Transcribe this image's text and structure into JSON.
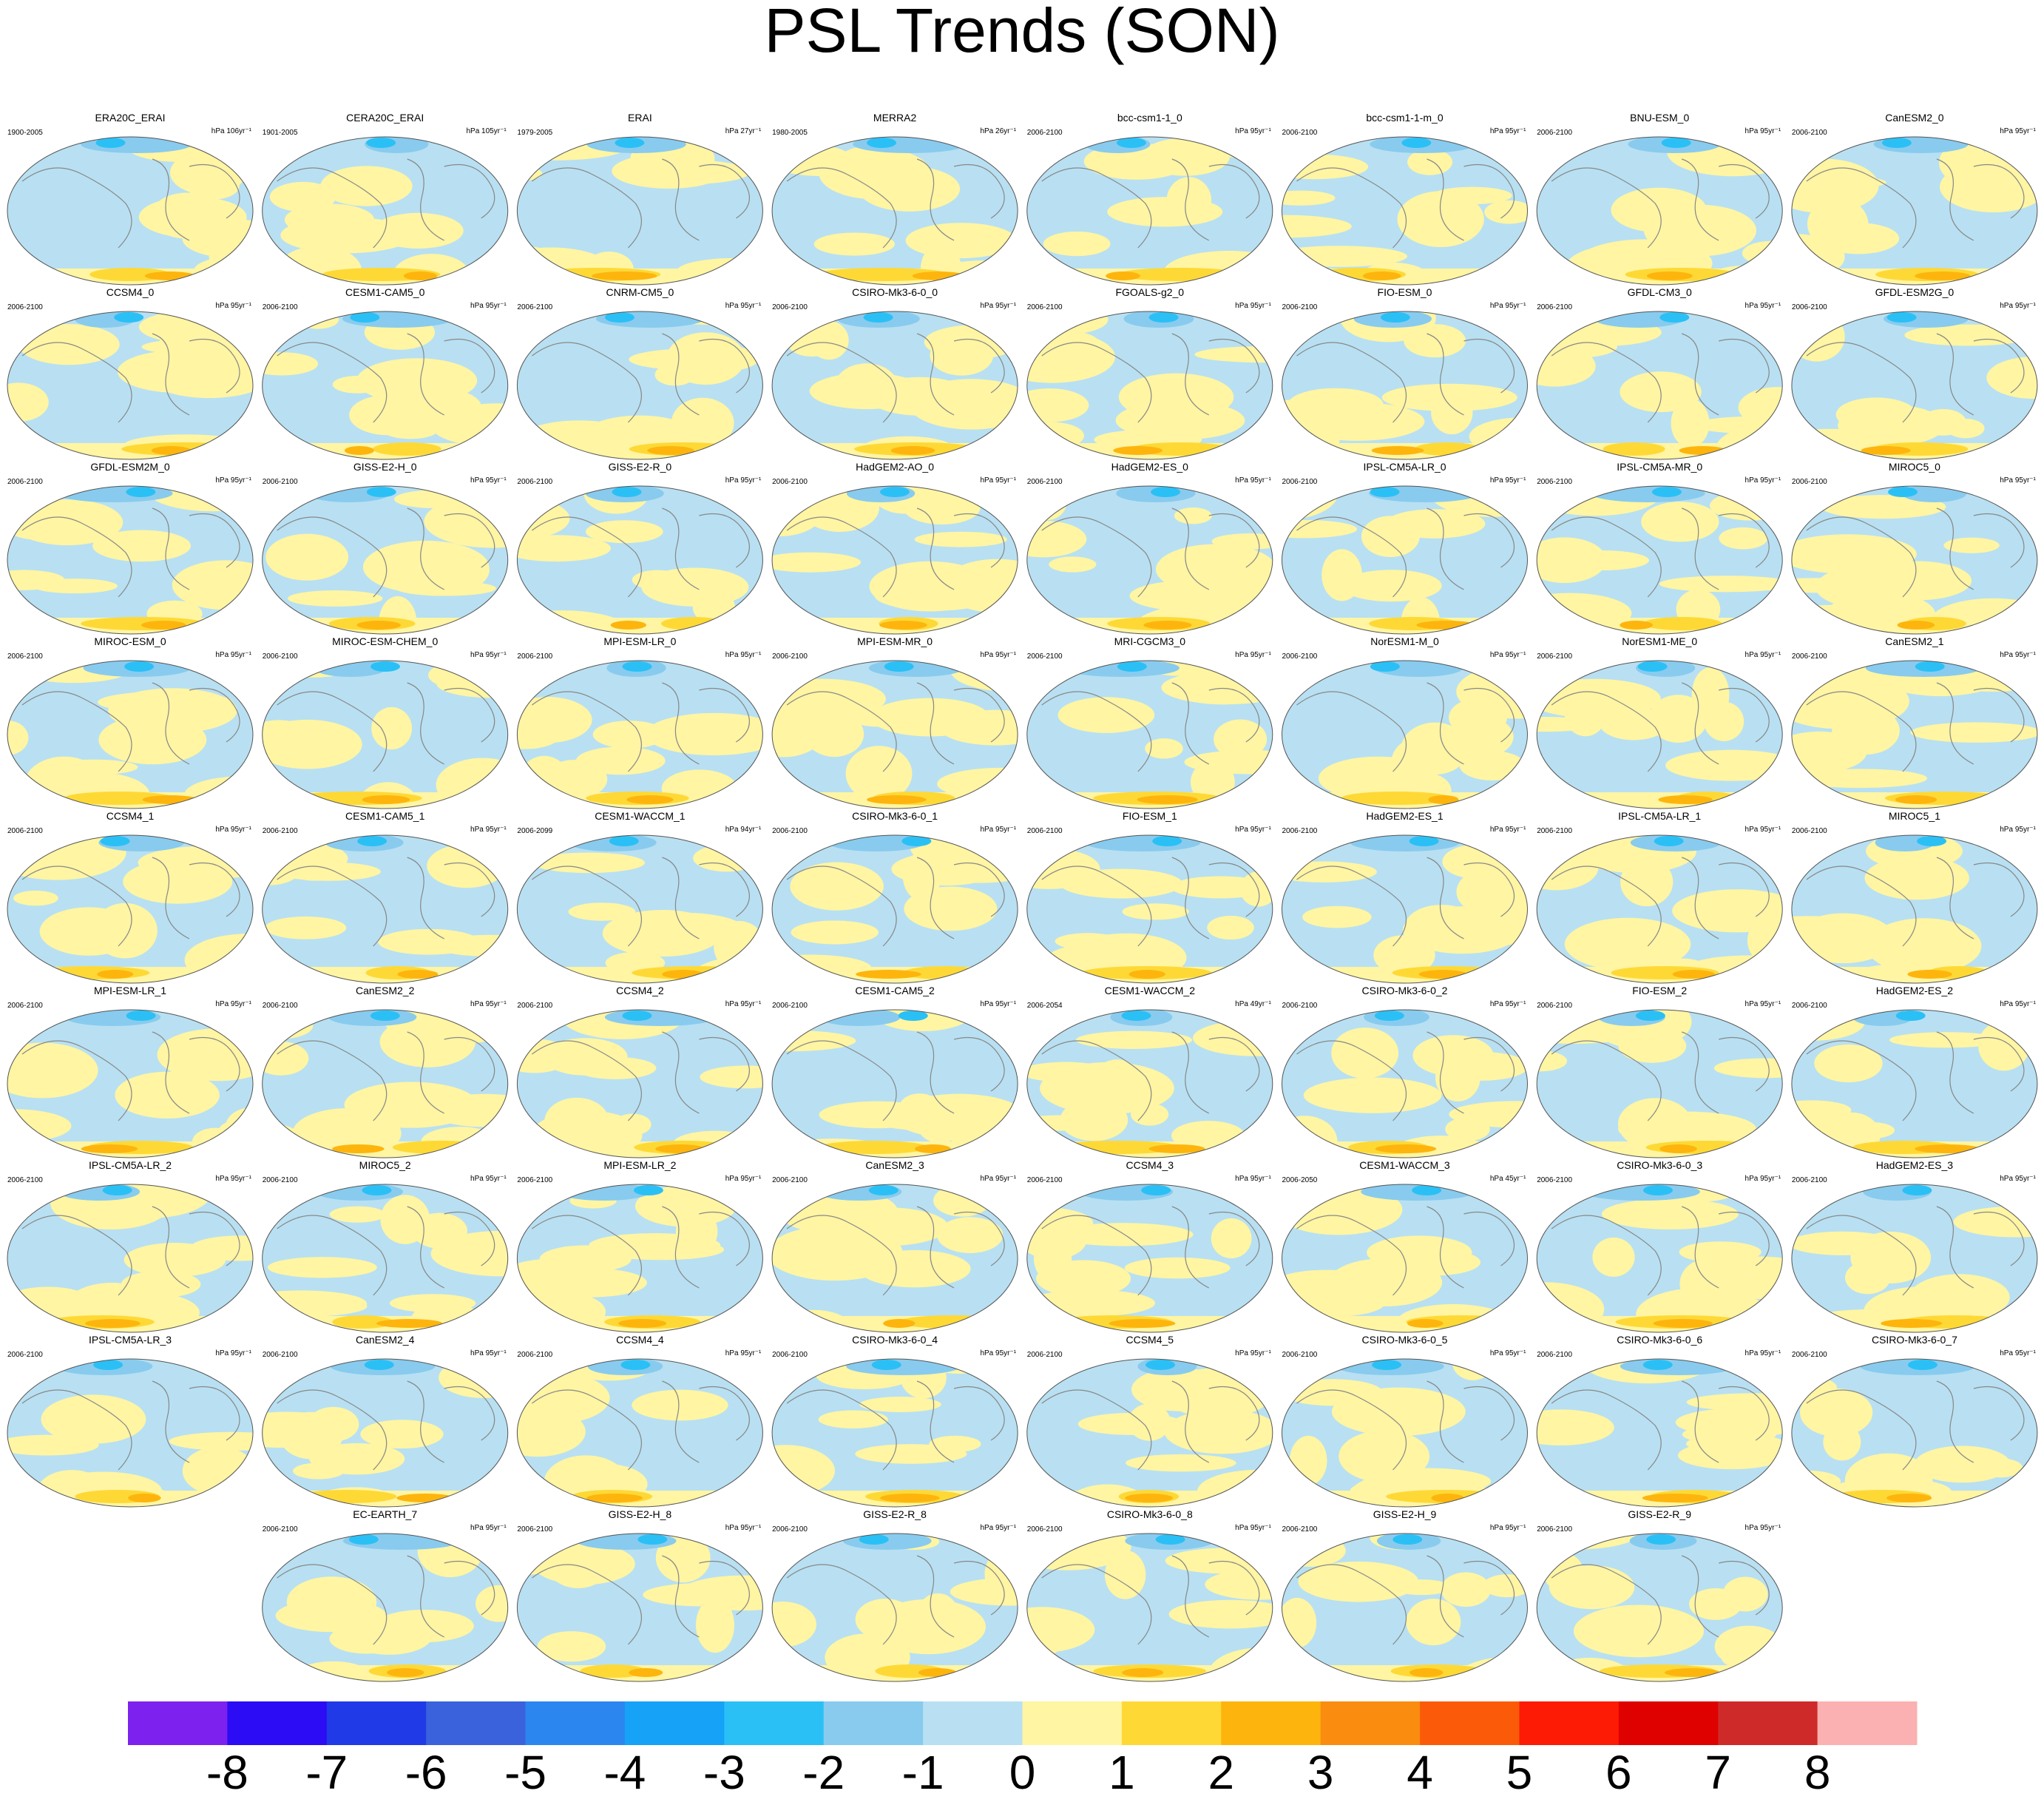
{
  "title": "PSL Trends (SON)",
  "panels": [
    {
      "name": "ERA20C_ERAI",
      "years": "1900-2005",
      "units": "hPa 106yr⁻¹"
    },
    {
      "name": "CERA20C_ERAI",
      "years": "1901-2005",
      "units": "hPa 105yr⁻¹"
    },
    {
      "name": "ERAI",
      "years": "1979-2005",
      "units": "hPa 27yr⁻¹"
    },
    {
      "name": "MERRA2",
      "years": "1980-2005",
      "units": "hPa 26yr⁻¹"
    },
    {
      "name": "bcc-csm1-1_0",
      "years": "2006-2100",
      "units": "hPa 95yr⁻¹"
    },
    {
      "name": "bcc-csm1-1-m_0",
      "years": "2006-2100",
      "units": "hPa 95yr⁻¹"
    },
    {
      "name": "BNU-ESM_0",
      "years": "2006-2100",
      "units": "hPa 95yr⁻¹"
    },
    {
      "name": "CanESM2_0",
      "years": "2006-2100",
      "units": "hPa 95yr⁻¹"
    },
    {
      "name": "CCSM4_0",
      "years": "2006-2100",
      "units": "hPa 95yr⁻¹"
    },
    {
      "name": "CESM1-CAM5_0",
      "years": "2006-2100",
      "units": "hPa 95yr⁻¹"
    },
    {
      "name": "CNRM-CM5_0",
      "years": "2006-2100",
      "units": "hPa 95yr⁻¹"
    },
    {
      "name": "CSIRO-Mk3-6-0_0",
      "years": "2006-2100",
      "units": "hPa 95yr⁻¹"
    },
    {
      "name": "FGOALS-g2_0",
      "years": "2006-2100",
      "units": "hPa 95yr⁻¹"
    },
    {
      "name": "FIO-ESM_0",
      "years": "2006-2100",
      "units": "hPa 95yr⁻¹"
    },
    {
      "name": "GFDL-CM3_0",
      "years": "2006-2100",
      "units": "hPa 95yr⁻¹"
    },
    {
      "name": "GFDL-ESM2G_0",
      "years": "2006-2100",
      "units": "hPa 95yr⁻¹"
    },
    {
      "name": "GFDL-ESM2M_0",
      "years": "2006-2100",
      "units": "hPa 95yr⁻¹"
    },
    {
      "name": "GISS-E2-H_0",
      "years": "2006-2100",
      "units": "hPa 95yr⁻¹"
    },
    {
      "name": "GISS-E2-R_0",
      "years": "2006-2100",
      "units": "hPa 95yr⁻¹"
    },
    {
      "name": "HadGEM2-AO_0",
      "years": "2006-2100",
      "units": "hPa 95yr⁻¹"
    },
    {
      "name": "HadGEM2-ES_0",
      "years": "2006-2100",
      "units": "hPa 95yr⁻¹"
    },
    {
      "name": "IPSL-CM5A-LR_0",
      "years": "2006-2100",
      "units": "hPa 95yr⁻¹"
    },
    {
      "name": "IPSL-CM5A-MR_0",
      "years": "2006-2100",
      "units": "hPa 95yr⁻¹"
    },
    {
      "name": "MIROC5_0",
      "years": "2006-2100",
      "units": "hPa 95yr⁻¹"
    },
    {
      "name": "MIROC-ESM_0",
      "years": "2006-2100",
      "units": "hPa 95yr⁻¹"
    },
    {
      "name": "MIROC-ESM-CHEM_0",
      "years": "2006-2100",
      "units": "hPa 95yr⁻¹"
    },
    {
      "name": "MPI-ESM-LR_0",
      "years": "2006-2100",
      "units": "hPa 95yr⁻¹"
    },
    {
      "name": "MPI-ESM-MR_0",
      "years": "2006-2100",
      "units": "hPa 95yr⁻¹"
    },
    {
      "name": "MRI-CGCM3_0",
      "years": "2006-2100",
      "units": "hPa 95yr⁻¹"
    },
    {
      "name": "NorESM1-M_0",
      "years": "2006-2100",
      "units": "hPa 95yr⁻¹"
    },
    {
      "name": "NorESM1-ME_0",
      "years": "2006-2100",
      "units": "hPa 95yr⁻¹"
    },
    {
      "name": "CanESM2_1",
      "years": "2006-2100",
      "units": "hPa 95yr⁻¹"
    },
    {
      "name": "CCSM4_1",
      "years": "2006-2100",
      "units": "hPa 95yr⁻¹"
    },
    {
      "name": "CESM1-CAM5_1",
      "years": "2006-2100",
      "units": "hPa 95yr⁻¹"
    },
    {
      "name": "CESM1-WACCM_1",
      "years": "2006-2099",
      "units": "hPa 94yr⁻¹"
    },
    {
      "name": "CSIRO-Mk3-6-0_1",
      "years": "2006-2100",
      "units": "hPa 95yr⁻¹"
    },
    {
      "name": "FIO-ESM_1",
      "years": "2006-2100",
      "units": "hPa 95yr⁻¹"
    },
    {
      "name": "HadGEM2-ES_1",
      "years": "2006-2100",
      "units": "hPa 95yr⁻¹"
    },
    {
      "name": "IPSL-CM5A-LR_1",
      "years": "2006-2100",
      "units": "hPa 95yr⁻¹"
    },
    {
      "name": "MIROC5_1",
      "years": "2006-2100",
      "units": "hPa 95yr⁻¹"
    },
    {
      "name": "MPI-ESM-LR_1",
      "years": "2006-2100",
      "units": "hPa 95yr⁻¹"
    },
    {
      "name": "CanESM2_2",
      "years": "2006-2100",
      "units": "hPa 95yr⁻¹"
    },
    {
      "name": "CCSM4_2",
      "years": "2006-2100",
      "units": "hPa 95yr⁻¹"
    },
    {
      "name": "CESM1-CAM5_2",
      "years": "2006-2100",
      "units": "hPa 95yr⁻¹"
    },
    {
      "name": "CESM1-WACCM_2",
      "years": "2006-2054",
      "units": "hPa 49yr⁻¹"
    },
    {
      "name": "CSIRO-Mk3-6-0_2",
      "years": "2006-2100",
      "units": "hPa 95yr⁻¹"
    },
    {
      "name": "FIO-ESM_2",
      "years": "2006-2100",
      "units": "hPa 95yr⁻¹"
    },
    {
      "name": "HadGEM2-ES_2",
      "years": "2006-2100",
      "units": "hPa 95yr⁻¹"
    },
    {
      "name": "IPSL-CM5A-LR_2",
      "years": "2006-2100",
      "units": "hPa 95yr⁻¹"
    },
    {
      "name": "MIROC5_2",
      "years": "2006-2100",
      "units": "hPa 95yr⁻¹"
    },
    {
      "name": "MPI-ESM-LR_2",
      "years": "2006-2100",
      "units": "hPa 95yr⁻¹"
    },
    {
      "name": "CanESM2_3",
      "years": "2006-2100",
      "units": "hPa 95yr⁻¹"
    },
    {
      "name": "CCSM4_3",
      "years": "2006-2100",
      "units": "hPa 95yr⁻¹"
    },
    {
      "name": "CESM1-WACCM_3",
      "years": "2006-2050",
      "units": "hPa 45yr⁻¹"
    },
    {
      "name": "CSIRO-Mk3-6-0_3",
      "years": "2006-2100",
      "units": "hPa 95yr⁻¹"
    },
    {
      "name": "HadGEM2-ES_3",
      "years": "2006-2100",
      "units": "hPa 95yr⁻¹"
    },
    {
      "name": "IPSL-CM5A-LR_3",
      "years": "2006-2100",
      "units": "hPa 95yr⁻¹"
    },
    {
      "name": "CanESM2_4",
      "years": "2006-2100",
      "units": "hPa 95yr⁻¹"
    },
    {
      "name": "CCSM4_4",
      "years": "2006-2100",
      "units": "hPa 95yr⁻¹"
    },
    {
      "name": "CSIRO-Mk3-6-0_4",
      "years": "2006-2100",
      "units": "hPa 95yr⁻¹"
    },
    {
      "name": "CCSM4_5",
      "years": "2006-2100",
      "units": "hPa 95yr⁻¹"
    },
    {
      "name": "CSIRO-Mk3-6-0_5",
      "years": "2006-2100",
      "units": "hPa 95yr⁻¹"
    },
    {
      "name": "CSIRO-Mk3-6-0_6",
      "years": "2006-2100",
      "units": "hPa 95yr⁻¹"
    },
    {
      "name": "CSIRO-Mk3-6-0_7",
      "years": "2006-2100",
      "units": "hPa 95yr⁻¹"
    },
    {
      "name": "EC-EARTH_7",
      "years": "2006-2100",
      "units": "hPa 95yr⁻¹"
    },
    {
      "name": "GISS-E2-H_8",
      "years": "2006-2100",
      "units": "hPa 95yr⁻¹"
    },
    {
      "name": "GISS-E2-R_8",
      "years": "2006-2100",
      "units": "hPa 95yr⁻¹"
    },
    {
      "name": "CSIRO-Mk3-6-0_8",
      "years": "2006-2100",
      "units": "hPa 95yr⁻¹"
    },
    {
      "name": "GISS-E2-H_9",
      "years": "2006-2100",
      "units": "hPa 95yr⁻¹"
    },
    {
      "name": "GISS-E2-R_9",
      "years": "2006-2100",
      "units": "hPa 95yr⁻¹"
    }
  ],
  "colorbar": {
    "colors": [
      "#7d22ee",
      "#2b0cf5",
      "#1f3ae6",
      "#3a62dd",
      "#2c86f0",
      "#16a2f6",
      "#2ac0f6",
      "#88cbee",
      "#b8e0f2",
      "#fff5a3",
      "#fed936",
      "#fdb50d",
      "#fa8c10",
      "#fb5b08",
      "#fd1b05",
      "#df0000",
      "#cf2a2a",
      "#fbb1b1"
    ],
    "labels": [
      -8,
      -7,
      -6,
      -5,
      -4,
      -3,
      -2,
      -1,
      0,
      1,
      2,
      3,
      4,
      5,
      6,
      7,
      8
    ]
  }
}
